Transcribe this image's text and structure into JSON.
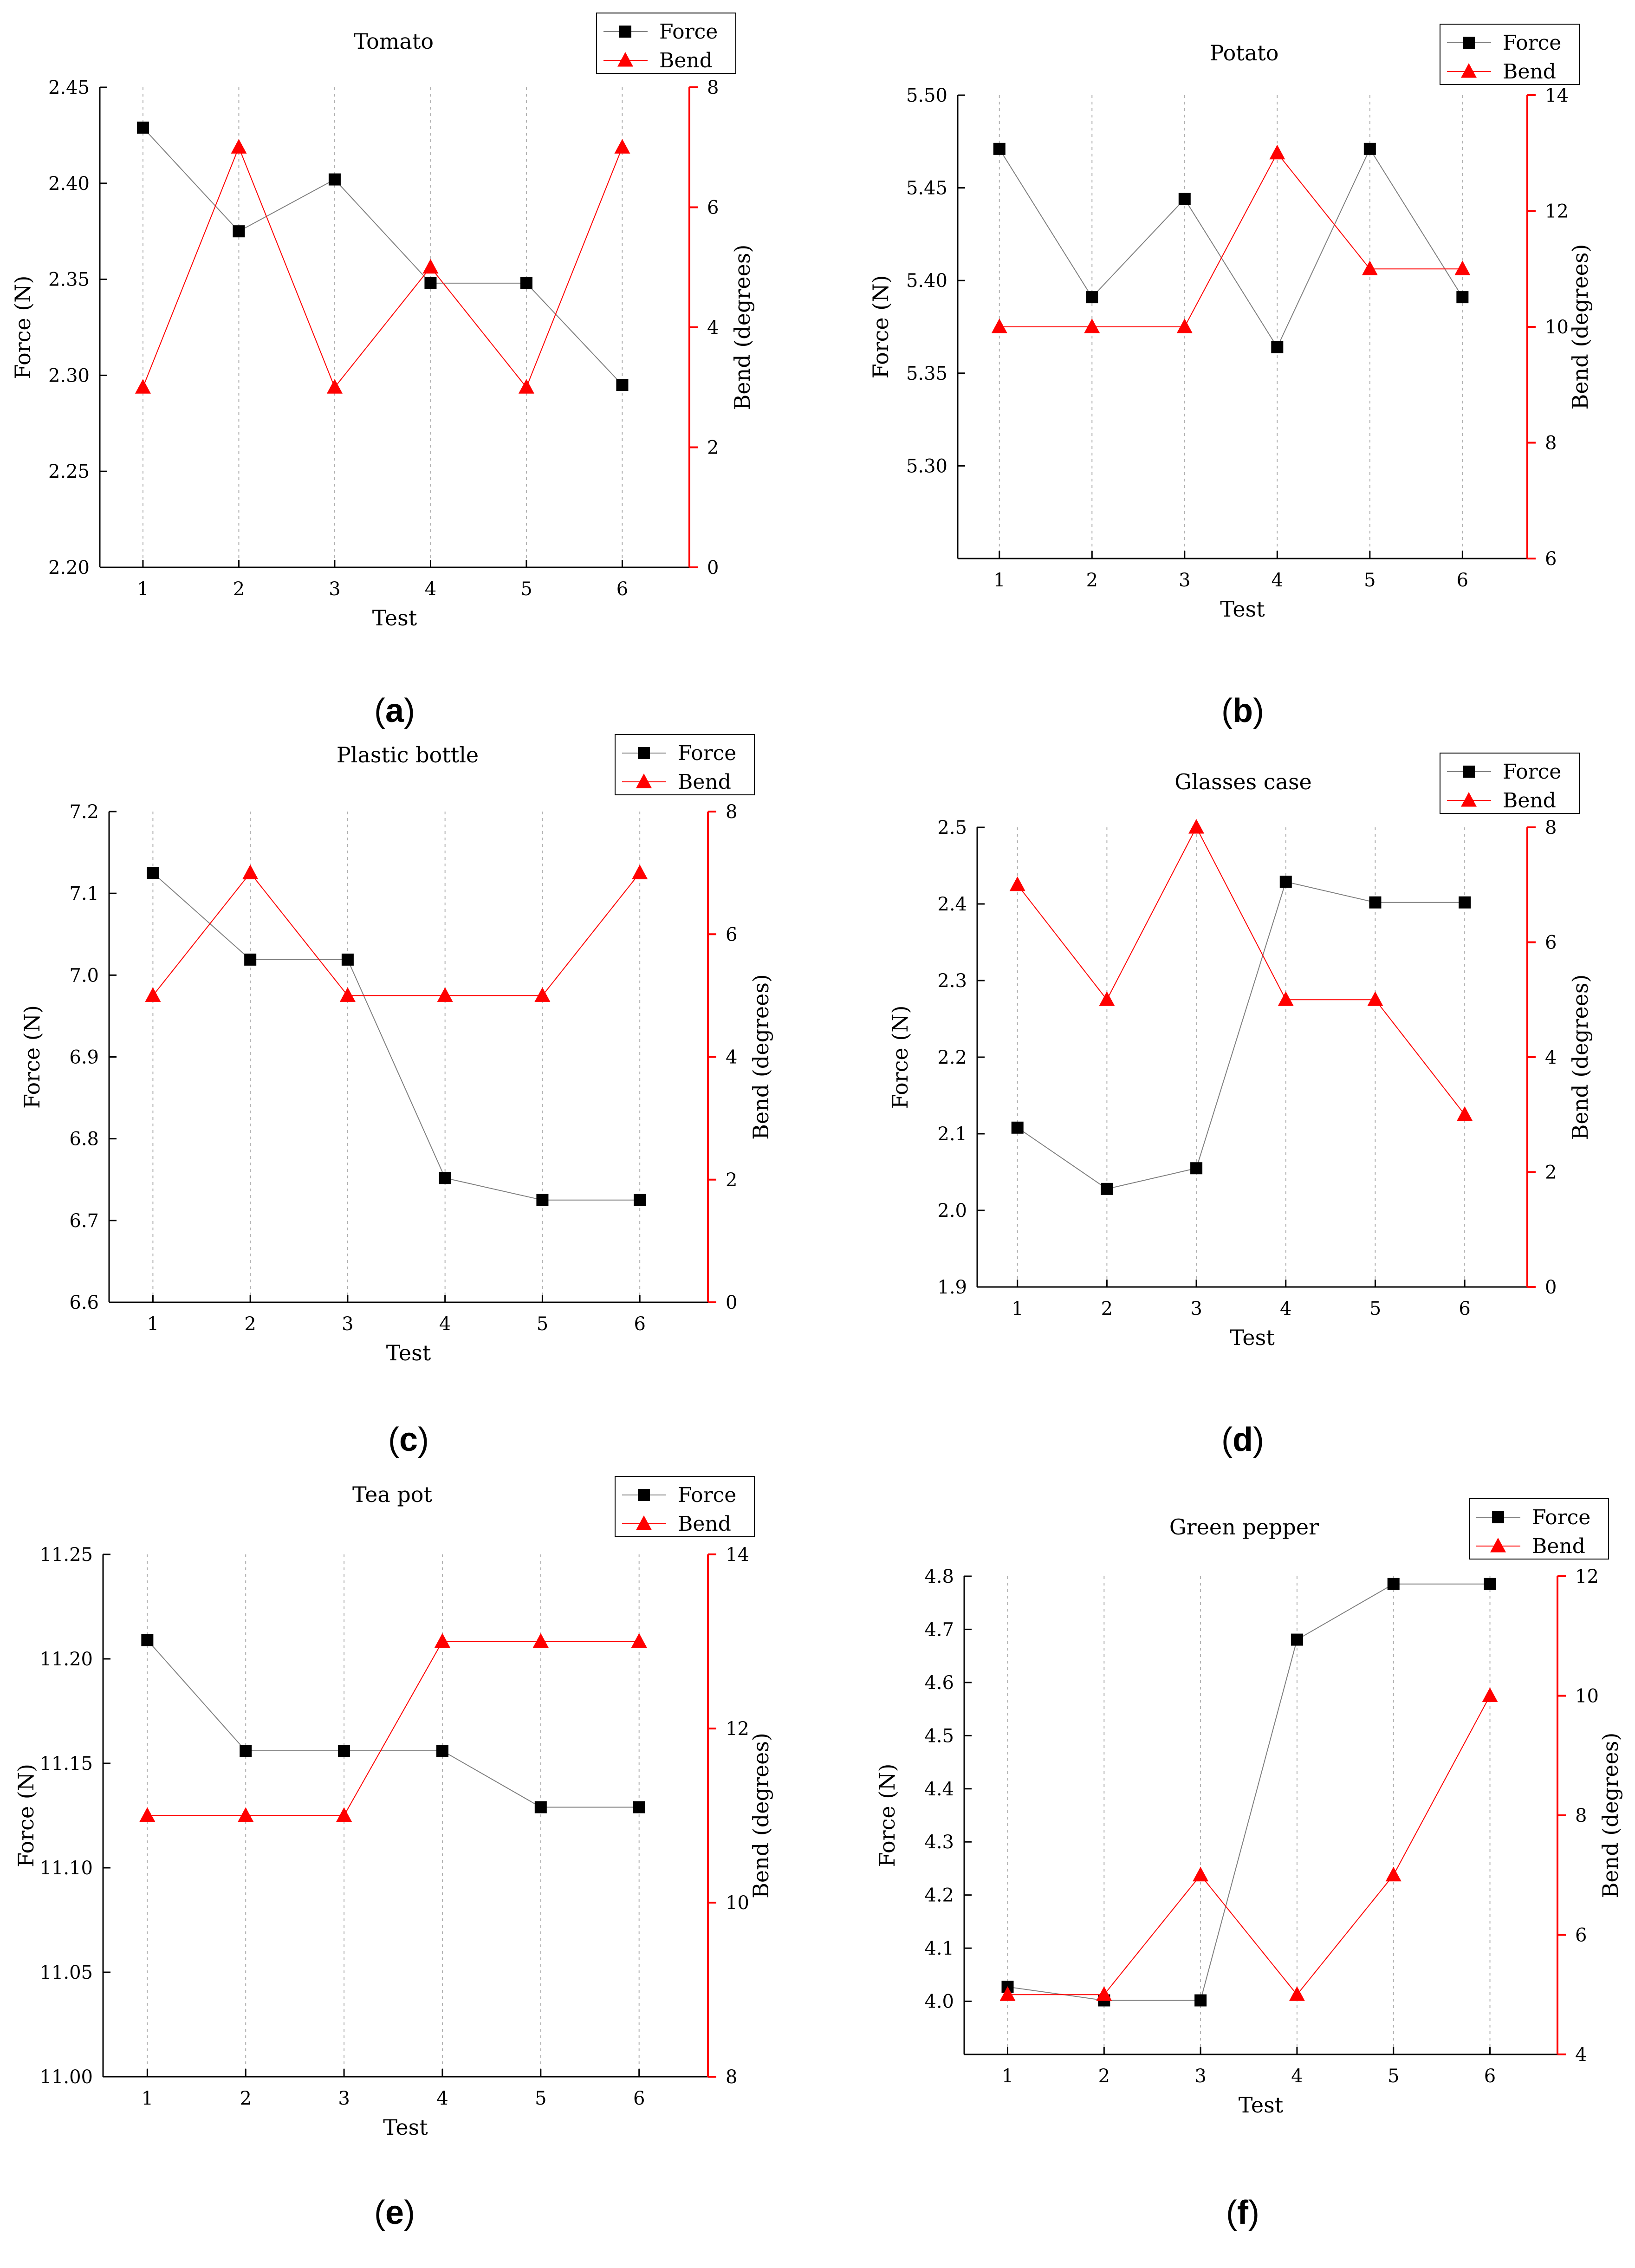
{
  "colors": {
    "force": "#000000",
    "force_line": "#808080",
    "bend": "#ff0000",
    "grid": "#b0b0b0"
  },
  "legend": {
    "force_label": "Force",
    "bend_label": "Bend"
  },
  "chart_data": [
    {
      "type": "line",
      "title": "Tomato",
      "caption_prefix": "(",
      "caption_letter": "a",
      "caption_suffix": ")",
      "xlabel": "Test",
      "ylabel": "Force (N)",
      "y2label": "Bend (degrees)",
      "x": [
        1,
        2,
        3,
        4,
        5,
        6
      ],
      "ylim": [
        2.2,
        2.45
      ],
      "yticks": [
        "2.20",
        "2.25",
        "2.30",
        "2.35",
        "2.40",
        "2.45"
      ],
      "y2lim": [
        0,
        8
      ],
      "y2ticks": [
        "0",
        "2",
        "4",
        "6",
        "8"
      ],
      "series": [
        {
          "name": "Force",
          "axis": "left",
          "marker": "square",
          "values": [
            2.429,
            2.375,
            2.402,
            2.348,
            2.348,
            2.295
          ]
        },
        {
          "name": "Bend",
          "axis": "right",
          "marker": "triangle",
          "values": [
            3,
            7,
            3,
            5,
            3,
            7
          ]
        }
      ]
    },
    {
      "type": "line",
      "title": "Potato",
      "caption_prefix": "(",
      "caption_letter": "b",
      "caption_suffix": ")",
      "xlabel": "Test",
      "ylabel": "Force (N)",
      "y2label": "Bend (degrees)",
      "x": [
        1,
        2,
        3,
        4,
        5,
        6
      ],
      "ylim": [
        5.25,
        5.5
      ],
      "yticks": [
        "",
        "5.30",
        "5.35",
        "5.40",
        "5.45",
        "5.50"
      ],
      "y2lim": [
        6,
        14
      ],
      "y2ticks": [
        "6",
        "8",
        "10",
        "12",
        "14"
      ],
      "series": [
        {
          "name": "Force",
          "axis": "left",
          "marker": "square",
          "values": [
            5.471,
            5.391,
            5.444,
            5.364,
            5.471,
            5.391
          ]
        },
        {
          "name": "Bend",
          "axis": "right",
          "marker": "triangle",
          "values": [
            10,
            10,
            10,
            13,
            11,
            11
          ]
        }
      ]
    },
    {
      "type": "line",
      "title": "Plastic bottle",
      "caption_prefix": "(",
      "caption_letter": "c",
      "caption_suffix": ")",
      "xlabel": "Test",
      "ylabel": "Force (N)",
      "y2label": "Bend (degrees)",
      "x": [
        1,
        2,
        3,
        4,
        5,
        6
      ],
      "ylim": [
        6.6,
        7.2
      ],
      "yticks": [
        "6.6",
        "6.7",
        "6.8",
        "6.9",
        "7.0",
        "7.1",
        "7.2"
      ],
      "y2lim": [
        0,
        8
      ],
      "y2ticks": [
        "0",
        "2",
        "4",
        "6",
        "8"
      ],
      "series": [
        {
          "name": "Force",
          "axis": "left",
          "marker": "square",
          "values": [
            7.125,
            7.019,
            7.019,
            6.752,
            6.725,
            6.725
          ]
        },
        {
          "name": "Bend",
          "axis": "right",
          "marker": "triangle",
          "values": [
            5,
            7,
            5,
            5,
            5,
            7
          ]
        }
      ]
    },
    {
      "type": "line",
      "title": "Glasses case",
      "caption_prefix": "(",
      "caption_letter": "d",
      "caption_suffix": ")",
      "xlabel": "Test",
      "ylabel": "Force (N)",
      "y2label": "Bend (degrees)",
      "x": [
        1,
        2,
        3,
        4,
        5,
        6
      ],
      "ylim": [
        1.9,
        2.5
      ],
      "yticks": [
        "1.9",
        "2.0",
        "2.1",
        "2.2",
        "2.3",
        "2.4",
        "2.5"
      ],
      "y2lim": [
        0,
        8
      ],
      "y2ticks": [
        "0",
        "2",
        "4",
        "6",
        "8"
      ],
      "series": [
        {
          "name": "Force",
          "axis": "left",
          "marker": "square",
          "values": [
            2.108,
            2.028,
            2.055,
            2.429,
            2.402,
            2.402
          ]
        },
        {
          "name": "Bend",
          "axis": "right",
          "marker": "triangle",
          "values": [
            7,
            5,
            8,
            5,
            5,
            3
          ]
        }
      ]
    },
    {
      "type": "line",
      "title": "Tea pot",
      "caption_prefix": "(",
      "caption_letter": "e",
      "caption_suffix": ")",
      "xlabel": "Test",
      "ylabel": "Force (N)",
      "y2label": "Bend (degrees)",
      "x": [
        1,
        2,
        3,
        4,
        5,
        6
      ],
      "ylim": [
        11.0,
        11.25
      ],
      "yticks": [
        "11.00",
        "11.05",
        "11.10",
        "11.15",
        "11.20",
        "11.25"
      ],
      "y2lim": [
        8,
        14
      ],
      "y2ticks": [
        "8",
        "10",
        "12",
        "14"
      ],
      "series": [
        {
          "name": "Force",
          "axis": "left",
          "marker": "square",
          "values": [
            11.209,
            11.156,
            11.156,
            11.156,
            11.129,
            11.129
          ]
        },
        {
          "name": "Bend",
          "axis": "right",
          "marker": "triangle",
          "values": [
            11,
            11,
            11,
            13,
            13,
            13
          ]
        }
      ]
    },
    {
      "type": "line",
      "title": "Green pepper",
      "caption_prefix": "(",
      "caption_letter": "f",
      "caption_suffix": ")",
      "xlabel": "Test",
      "ylabel": "Force (N)",
      "y2label": "Bend (degrees)",
      "x": [
        1,
        2,
        3,
        4,
        5,
        6
      ],
      "ylim": [
        3.9,
        4.82
      ],
      "yticks": [
        "",
        "4.0",
        "4.1",
        "4.2",
        "4.3",
        "4.4",
        "4.5",
        "4.6",
        "4.7",
        "4.8"
      ],
      "y2lim": [
        4,
        12
      ],
      "y2ticks": [
        "4",
        "6",
        "8",
        "10",
        "12"
      ],
      "series": [
        {
          "name": "Force",
          "axis": "left",
          "marker": "square",
          "values": [
            4.03,
            4.004,
            4.004,
            4.698,
            4.805,
            4.805
          ]
        },
        {
          "name": "Bend",
          "axis": "right",
          "marker": "triangle",
          "values": [
            5,
            5,
            7,
            5,
            7,
            10
          ]
        }
      ]
    }
  ]
}
